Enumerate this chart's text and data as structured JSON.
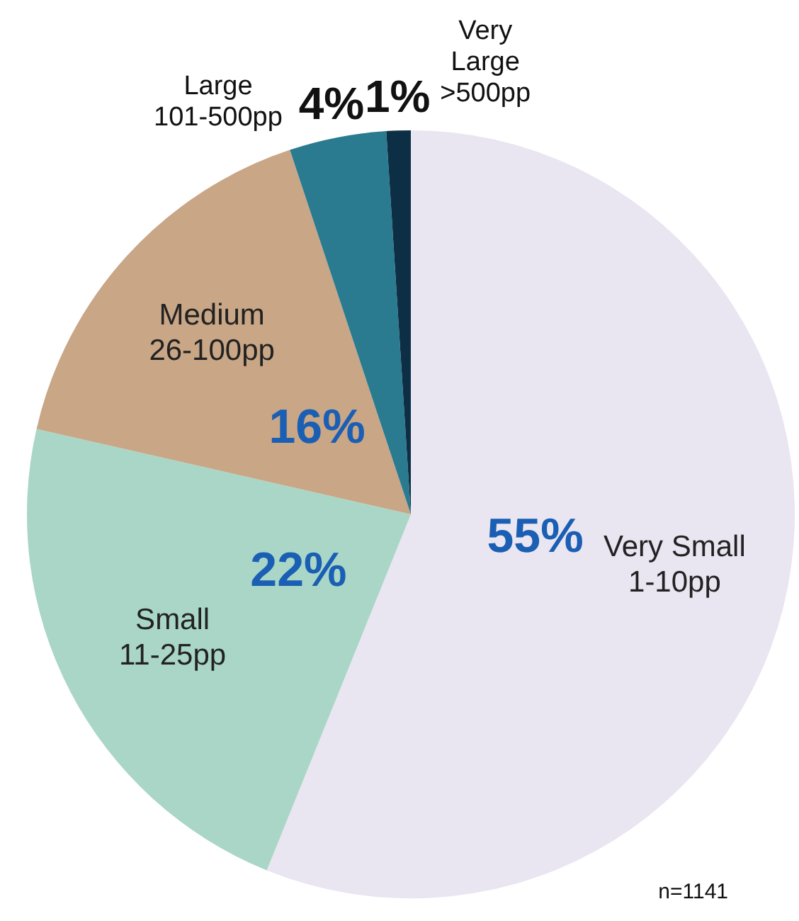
{
  "chart_data": {
    "type": "pie",
    "categories": [
      "Very Small\n1-10pp",
      "Small\n11-25pp",
      "Medium\n26-100pp",
      "Large\n101-500pp",
      "Very\nLarge\n>500pp"
    ],
    "values": [
      55,
      22,
      16,
      4,
      1
    ],
    "colors": [
      "#e9e5f1",
      "#a9d6c6",
      "#c8a686",
      "#2a7b90",
      "#0d2f46"
    ],
    "value_labels": [
      "55%",
      "22%",
      "16%",
      "4%",
      "1%"
    ],
    "annotations": [
      "n=1141"
    ],
    "legend": false
  }
}
